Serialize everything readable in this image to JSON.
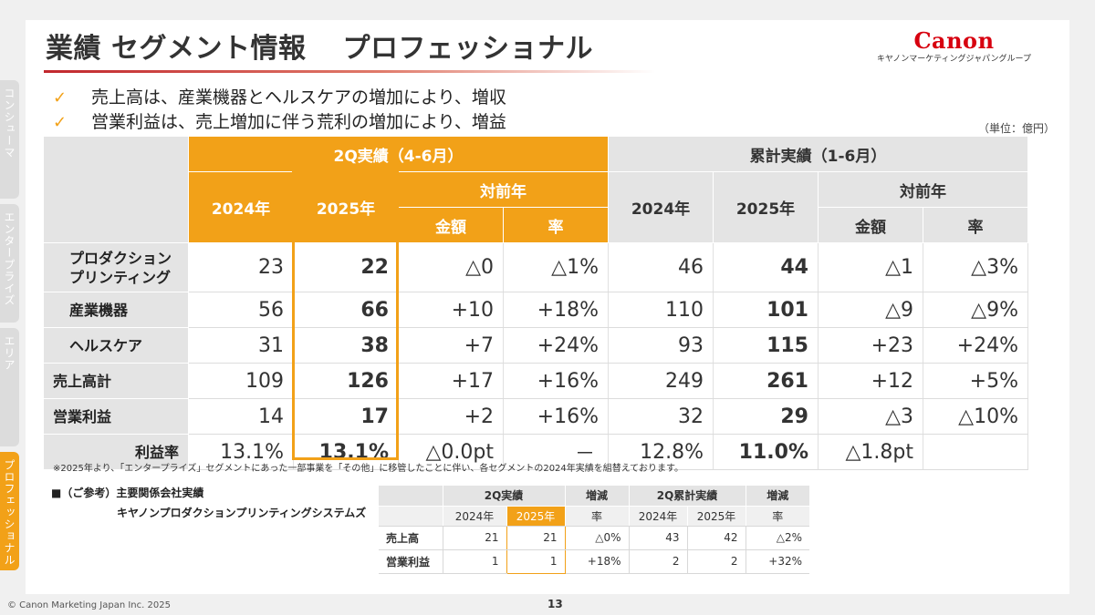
{
  "side_tabs": [
    "コンシューマ",
    "エンタープライズ",
    "エリア",
    "プロフェッショナル"
  ],
  "title": {
    "main": "業績 セグメント情報",
    "segment": "プロフェッショナル"
  },
  "logo": {
    "word": "Canon",
    "sub": "キヤノンマーケティングジャパングループ"
  },
  "bullets": [
    "売上高は、産業機器とヘルスケアの増加により、増収",
    "営業利益は、売上増加に伴う荒利の増加により、増益"
  ],
  "unit": "（単位：億円）",
  "table": {
    "q2_header": "2Q実績（4-6月）",
    "cum_header": "累計実績（1-6月）",
    "y2024": "2024年",
    "y2025": "2025年",
    "yoy": "対前年",
    "amount": "金額",
    "rate": "率",
    "rows": [
      {
        "label": "プロダクション\nプリンティング",
        "q2_2024": "23",
        "q2_2025": "22",
        "q2_amt": "△0",
        "q2_rate": "△1%",
        "c_2024": "46",
        "c_2025": "44",
        "c_amt": "△1",
        "c_rate": "△3%"
      },
      {
        "label": "産業機器",
        "q2_2024": "56",
        "q2_2025": "66",
        "q2_amt": "+10",
        "q2_rate": "+18%",
        "c_2024": "110",
        "c_2025": "101",
        "c_amt": "△9",
        "c_rate": "△9%"
      },
      {
        "label": "ヘルスケア",
        "q2_2024": "31",
        "q2_2025": "38",
        "q2_amt": "+7",
        "q2_rate": "+24%",
        "c_2024": "93",
        "c_2025": "115",
        "c_amt": "+23",
        "c_rate": "+24%"
      },
      {
        "label": "売上高計",
        "q2_2024": "109",
        "q2_2025": "126",
        "q2_amt": "+17",
        "q2_rate": "+16%",
        "c_2024": "249",
        "c_2025": "261",
        "c_amt": "+12",
        "c_rate": "+5%"
      },
      {
        "label": "営業利益",
        "q2_2024": "14",
        "q2_2025": "17",
        "q2_amt": "+2",
        "q2_rate": "+16%",
        "c_2024": "32",
        "c_2025": "29",
        "c_amt": "△3",
        "c_rate": "△10%"
      },
      {
        "label": "利益率",
        "q2_2024": "13.1%",
        "q2_2025": "13.1%",
        "q2_amt": "△0.0pt",
        "q2_rate": "－",
        "c_2024": "12.8%",
        "c_2025": "11.0%",
        "c_amt": "△1.8pt",
        "c_rate": ""
      }
    ]
  },
  "note": "※2025年より、「エンタープライズ」セグメントにあった一部事業を「その他」に移管したことに伴い、各セグメントの2024年実績を組替えております。",
  "reference": {
    "title": "■（ご参考）主要関係会社実績",
    "company": "キヤノンプロダクションプリンティングシステムズ",
    "q2": "2Q実績",
    "change": "増減",
    "cum": "2Q累計実績",
    "y2024": "2024年",
    "y2025": "2025年",
    "rate": "率",
    "rows": [
      {
        "label": "売上高",
        "q2_2024": "21",
        "q2_2025": "21",
        "q2_rate": "△0%",
        "c_2024": "43",
        "c_2025": "42",
        "c_rate": "△2%"
      },
      {
        "label": "営業利益",
        "q2_2024": "1",
        "q2_2025": "1",
        "q2_rate": "+18%",
        "c_2024": "2",
        "c_2025": "2",
        "c_rate": "+32%"
      }
    ]
  },
  "footer": {
    "copyright": "© Canon Marketing Japan Inc. 2025",
    "page": "13"
  },
  "colors": {
    "accent": "#f2a118",
    "brand": "#d7000f",
    "header_gray": "#e4e4e4"
  }
}
